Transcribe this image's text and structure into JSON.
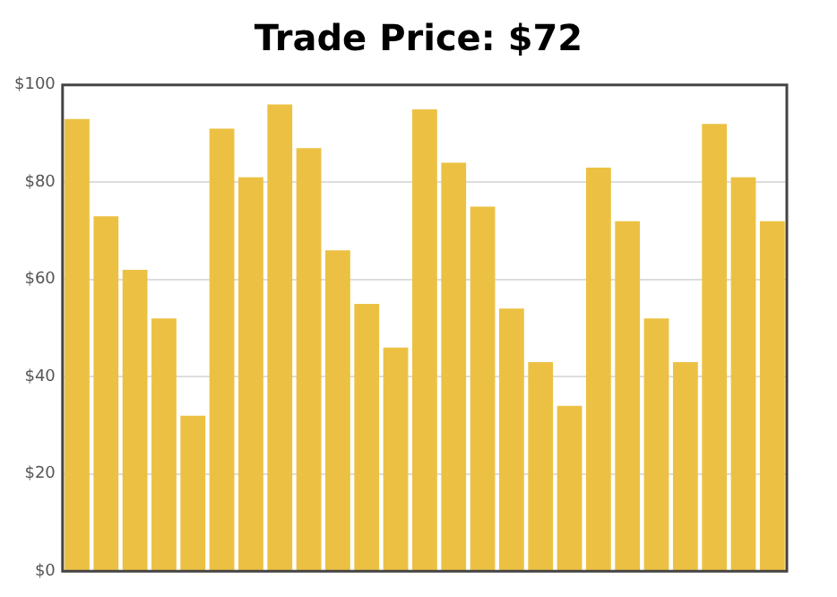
{
  "chart_data": {
    "type": "bar",
    "title": "Trade Price: $72",
    "categories": [
      null,
      null,
      null,
      null,
      null,
      null,
      null,
      null,
      null,
      null,
      null,
      null,
      null,
      null,
      null,
      null,
      null,
      null,
      null,
      null,
      null,
      null,
      null,
      null,
      null
    ],
    "values": [
      93,
      73,
      62,
      52,
      32,
      91,
      81,
      96,
      87,
      66,
      55,
      46,
      95,
      84,
      75,
      54,
      43,
      34,
      83,
      72,
      52,
      43,
      92,
      81,
      72
    ],
    "color": "#ecc143",
    "ylim": [
      0,
      100
    ],
    "yticks": [
      {
        "value": 0,
        "label": "$0"
      },
      {
        "value": 20,
        "label": "$20"
      },
      {
        "value": 40,
        "label": "$40"
      },
      {
        "value": 60,
        "label": "$60"
      },
      {
        "value": 80,
        "label": "$80"
      },
      {
        "value": 100,
        "label": "$100"
      }
    ],
    "grid": "y"
  }
}
